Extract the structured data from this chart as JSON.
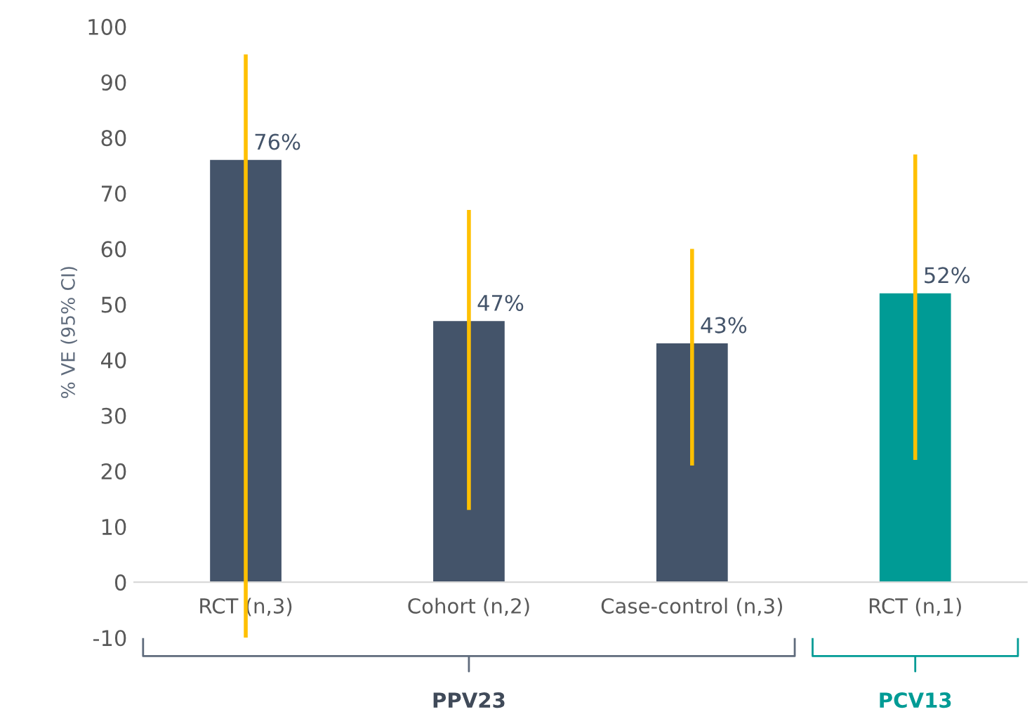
{
  "chart_data": {
    "type": "bar",
    "ylabel": "% VE (95% CI)",
    "categories": [
      "RCT (n,3)",
      "Cohort (n,2)",
      "Case-control (n,3)",
      "RCT (n,1)"
    ],
    "values": [
      76,
      47,
      43,
      52
    ],
    "colors": [
      "#44546a",
      "#44546a",
      "#44546a",
      "#009b95"
    ],
    "errors": [
      [
        -10,
        95
      ],
      [
        13,
        67
      ],
      [
        21,
        60
      ],
      [
        22,
        77
      ]
    ],
    "value_labels": [
      "76%",
      "47%",
      "43%",
      "52%"
    ],
    "ylim": [
      -10,
      100
    ],
    "yticks": [
      -10,
      0,
      10,
      20,
      30,
      40,
      50,
      60,
      70,
      80,
      90,
      100
    ],
    "grid": false,
    "legend": false,
    "annotations": [
      "PPV23",
      "PCV13"
    ]
  }
}
